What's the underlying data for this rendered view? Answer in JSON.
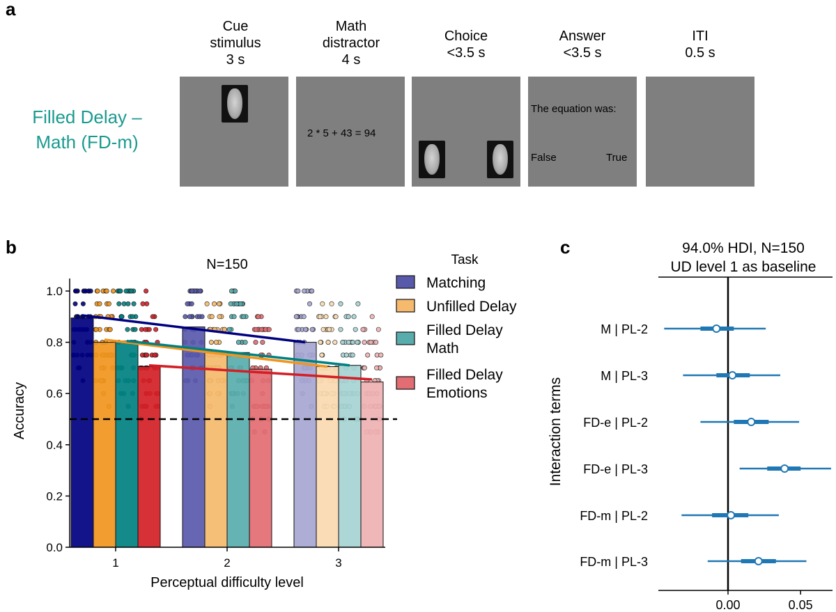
{
  "panel_a": {
    "letter": "a",
    "condition_label_line1": "Filled Delay –",
    "condition_label_line2": "Math (FD-m)",
    "stages": [
      {
        "line1": "Cue",
        "line2": "stimulus",
        "line3": "3 s"
      },
      {
        "line1": "Math",
        "line2": "distractor",
        "line3": "4 s"
      },
      {
        "line1": "Choice",
        "line2": "<3.5 s"
      },
      {
        "line1": "Answer",
        "line2": "<3.5 s"
      },
      {
        "line1": "ITI",
        "line2": "0.5 s"
      }
    ],
    "math_text": "2 * 5 + 43 = 94",
    "answer_prompt": "The equation was:",
    "answer_false": "False",
    "answer_true": "True"
  },
  "chart_data": [
    {
      "type": "bar",
      "panel_letter": "b",
      "title": "N=150",
      "xlabel": "Perceptual difficulty level",
      "ylabel": "Accuracy",
      "categories": [
        "1",
        "2",
        "3"
      ],
      "ylim": [
        0,
        1.05
      ],
      "yticks": [
        "0.0",
        "0.2",
        "0.4",
        "0.6",
        "0.8",
        "1.0"
      ],
      "chance_line": 0.5,
      "legend_title": "Task",
      "series": [
        {
          "name": "Matching",
          "values": [
            0.895,
            0.86,
            0.8
          ],
          "color": "#000080",
          "trend": [
            0.905,
            0.8
          ]
        },
        {
          "name": "Unfilled Delay",
          "values": [
            0.8,
            0.765,
            0.705
          ],
          "color": "#f0951e",
          "trend": [
            0.81,
            0.705
          ]
        },
        {
          "name": "Filled Delay Math",
          "values": [
            0.805,
            0.76,
            0.71
          ],
          "color": "#008080",
          "trend": [
            0.805,
            0.71
          ]
        },
        {
          "name": "Filled Delay Emotions",
          "values": [
            0.705,
            0.695,
            0.645
          ],
          "color": "#d21f26",
          "trend": [
            0.71,
            0.655
          ]
        }
      ],
      "legend_lines": [
        [
          "Matching"
        ],
        [
          "Unfilled Delay"
        ],
        [
          "Filled Delay",
          "Math"
        ],
        [
          "Filled Delay",
          "Emotions"
        ]
      ]
    },
    {
      "type": "forest",
      "panel_letter": "c",
      "title_line1": "94.0% HDI, N=150",
      "title_line2": "UD level 1 as baseline",
      "ylabel": "Interaction terms",
      "xlim": [
        -0.048,
        0.072
      ],
      "xticks": [
        "0.00",
        "0.05"
      ],
      "xtick_values": [
        0.0,
        0.05
      ],
      "rows": [
        {
          "label": "M | PL-2",
          "mean": -0.008,
          "hdi_low": -0.044,
          "hdi_high": 0.026,
          "iqr_low": -0.019,
          "iqr_high": 0.004
        },
        {
          "label": "M | PL-3",
          "mean": 0.003,
          "hdi_low": -0.031,
          "hdi_high": 0.036,
          "iqr_low": -0.008,
          "iqr_high": 0.015
        },
        {
          "label": "FD-e | PL-2",
          "mean": 0.016,
          "hdi_low": -0.019,
          "hdi_high": 0.049,
          "iqr_low": 0.004,
          "iqr_high": 0.028
        },
        {
          "label": "FD-e | PL-3",
          "mean": 0.039,
          "hdi_low": 0.008,
          "hdi_high": 0.071,
          "iqr_low": 0.027,
          "iqr_high": 0.05
        },
        {
          "label": "FD-m | PL-2",
          "mean": 0.002,
          "hdi_low": -0.032,
          "hdi_high": 0.035,
          "iqr_low": -0.011,
          "iqr_high": 0.014
        },
        {
          "label": "FD-m | PL-3",
          "mean": 0.021,
          "hdi_low": -0.014,
          "hdi_high": 0.054,
          "iqr_low": 0.009,
          "iqr_high": 0.033
        }
      ],
      "color": "#1f77b4"
    }
  ]
}
